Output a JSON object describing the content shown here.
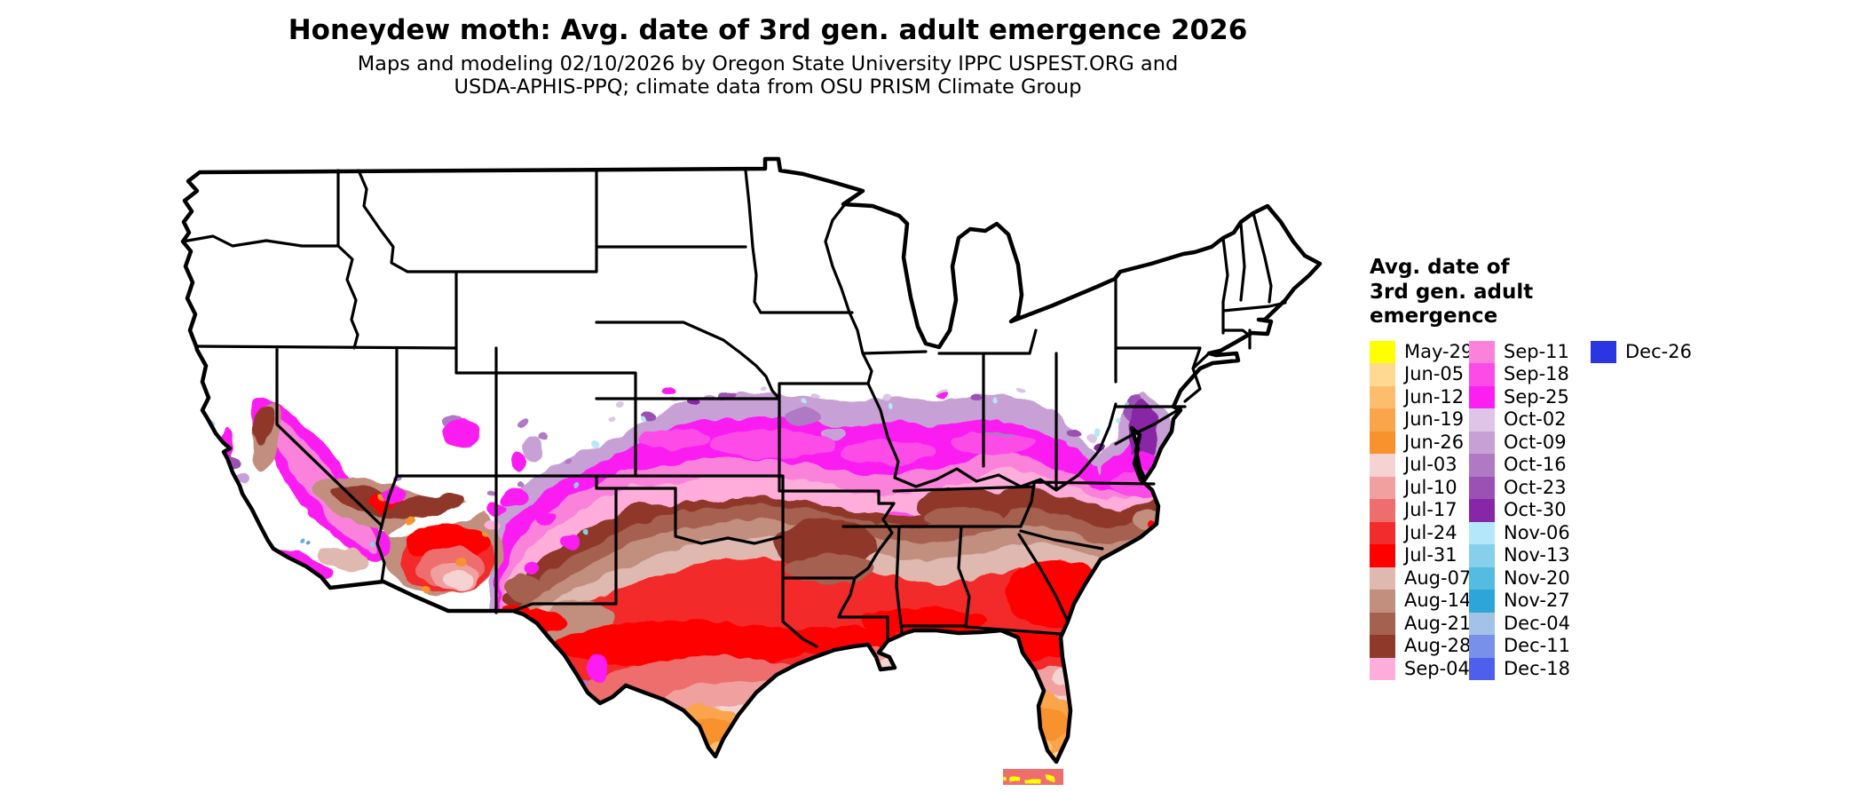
{
  "title": "Honeydew moth: Avg. date of 3rd gen. adult emergence 2026",
  "subtitle_line1": "Maps and modeling 02/10/2026 by Oregon State University IPPC USPEST.ORG and",
  "subtitle_line2": "USDA-APHIS-PPQ; climate data from OSU PRISM Climate Group",
  "map": {
    "area": "Contiguous United States",
    "type": "raster map of average emergence dates, colored by week"
  },
  "palette": {
    "may29": "#FFFF00",
    "jun05": "#FDD992",
    "jun12": "#FCBE6C",
    "jun19": "#FAA54B",
    "jun26": "#F8922D",
    "jul03": "#F5D3D3",
    "jul10": "#F1A0A0",
    "jul17": "#EE6E6E",
    "jul24": "#F22C2C",
    "jul31": "#FF0000",
    "aug07": "#DFB8AF",
    "aug14": "#C28E7E",
    "aug21": "#A5614F",
    "aug28": "#8F392B",
    "sep04": "#FFAEDC",
    "sep11": "#FB82DB",
    "sep18": "#FD4BE8",
    "sep25": "#FB1FF1",
    "oct02": "#DCC5E6",
    "oct09": "#C7A1D6",
    "oct16": "#B079C3",
    "oct23": "#9B51B3",
    "oct30": "#8827A6",
    "nov06": "#B5E7FA",
    "nov13": "#86D0EC",
    "nov20": "#55BBE1",
    "nov27": "#2DA5D7",
    "dec04": "#A4C2E5",
    "dec11": "#7890E9",
    "dec18": "#4E5FEE",
    "dec26": "#2B36E2"
  },
  "legend": {
    "title_lines": [
      "Avg. date of",
      "3rd gen. adult",
      "emergence"
    ],
    "columns": [
      {
        "entries": [
          {
            "label": "May-29",
            "key": "may29"
          },
          {
            "label": "Jun-05",
            "key": "jun05"
          },
          {
            "label": "Jun-12",
            "key": "jun12"
          },
          {
            "label": "Jun-19",
            "key": "jun19"
          },
          {
            "label": "Jun-26",
            "key": "jun26"
          },
          {
            "label": "Jul-03",
            "key": "jul03"
          },
          {
            "label": "Jul-10",
            "key": "jul10"
          },
          {
            "label": "Jul-17",
            "key": "jul17"
          },
          {
            "label": "Jul-24",
            "key": "jul24"
          },
          {
            "label": "Jul-31",
            "key": "jul31"
          },
          {
            "label": "Aug-07",
            "key": "aug07"
          },
          {
            "label": "Aug-14",
            "key": "aug14"
          },
          {
            "label": "Aug-21",
            "key": "aug21"
          },
          {
            "label": "Aug-28",
            "key": "aug28"
          },
          {
            "label": "Sep-04",
            "key": "sep04"
          }
        ]
      },
      {
        "entries": [
          {
            "label": "Sep-11",
            "key": "sep11"
          },
          {
            "label": "Sep-18",
            "key": "sep18"
          },
          {
            "label": "Sep-25",
            "key": "sep25"
          },
          {
            "label": "Oct-02",
            "key": "oct02"
          },
          {
            "label": "Oct-09",
            "key": "oct09"
          },
          {
            "label": "Oct-16",
            "key": "oct16"
          },
          {
            "label": "Oct-23",
            "key": "oct23"
          },
          {
            "label": "Oct-30",
            "key": "oct30"
          },
          {
            "label": "Nov-06",
            "key": "nov06"
          },
          {
            "label": "Nov-13",
            "key": "nov13"
          },
          {
            "label": "Nov-20",
            "key": "nov20"
          },
          {
            "label": "Nov-27",
            "key": "nov27"
          },
          {
            "label": "Dec-04",
            "key": "dec04"
          },
          {
            "label": "Dec-11",
            "key": "dec11"
          },
          {
            "label": "Dec-18",
            "key": "dec18"
          }
        ]
      },
      {
        "entries": [
          {
            "label": "Dec-26",
            "key": "dec26"
          }
        ]
      }
    ]
  }
}
